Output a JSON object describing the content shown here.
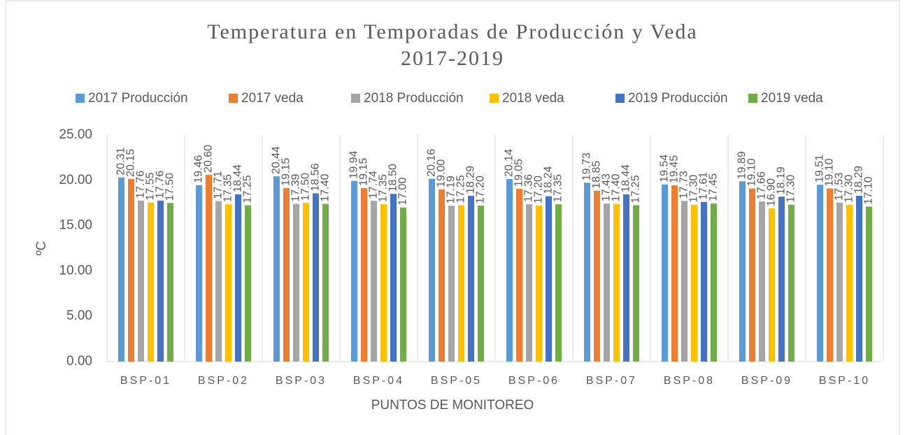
{
  "chart_data": {
    "type": "bar",
    "title": [
      "Temperatura en Temporadas de Producción y Veda",
      "2017-2019"
    ],
    "xlabel": "PUNTOS DE MONITOREO",
    "ylabel": "ºC",
    "categories": [
      "BSP-01",
      "BSP-02",
      "BSP-03",
      "BSP-04",
      "BSP-05",
      "BSP-06",
      "BSP-07",
      "BSP-08",
      "BSP-09",
      "BSP-10"
    ],
    "series": [
      {
        "name": "2017 Producción",
        "color": "#5b9bd5",
        "values": [
          20.31,
          19.46,
          20.44,
          19.94,
          20.16,
          20.14,
          19.73,
          19.54,
          19.89,
          19.51
        ],
        "value_labels": [
          "20.31",
          "19.46",
          "20.44",
          "19.94",
          "20.16",
          "20.14",
          "19.73",
          "19.54",
          "19.89",
          "19.51"
        ]
      },
      {
        "name": "2017 veda",
        "color": "#ed7d31",
        "values": [
          20.15,
          20.6,
          19.15,
          19.15,
          19,
          19.05,
          18.85,
          19.45,
          19.1,
          19.1
        ],
        "value_labels": [
          "20.15",
          "20.60",
          "19.15",
          "19.15",
          "19.00",
          "19.05",
          "18.85",
          "19.45",
          "19.10",
          "19.10"
        ]
      },
      {
        "name": "2018 Producción",
        "color": "#a5a5a5",
        "values": [
          17.76,
          17.71,
          17.39,
          17.74,
          17.19,
          17.36,
          17.43,
          17.73,
          17.66,
          17.53
        ],
        "value_labels": [
          "17.76",
          "17.71",
          "17.39",
          "17.74",
          "17.19",
          "17.36",
          "17.43",
          "17.73",
          "17.66",
          "17.53"
        ]
      },
      {
        "name": "2018 veda",
        "color": "#ffc000",
        "values": [
          17.55,
          17.35,
          17.5,
          17.35,
          17.25,
          17.2,
          17.4,
          17.3,
          16.9,
          17.3
        ],
        "value_labels": [
          "17.55",
          "17.35",
          "17.50",
          "17.35",
          "17.25",
          "17.20",
          "17.40",
          "17.30",
          "16.90",
          "17.30"
        ]
      },
      {
        "name": "2019 Producción",
        "color": "#4472c4",
        "values": [
          17.76,
          18.44,
          18.56,
          18.5,
          18.29,
          18.24,
          18.44,
          17.61,
          18.19,
          18.29
        ],
        "value_labels": [
          "17.76",
          "18.44",
          "18.56",
          "18.50",
          "18.29",
          "18.24",
          "18.44",
          "17.61",
          "18.19",
          "18.29"
        ]
      },
      {
        "name": "2019 veda",
        "color": "#70ad47",
        "values": [
          17.5,
          17.25,
          17.4,
          17,
          17.2,
          17.35,
          17.25,
          17.45,
          17.3,
          17.1
        ],
        "value_labels": [
          "17.50",
          "17.25",
          "17.40",
          "17.00",
          "17.20",
          "17.35",
          "17.25",
          "17.45",
          "17.30",
          "17.10"
        ]
      }
    ],
    "ylim": [
      0,
      25
    ],
    "yticks": [
      {
        "value": 0,
        "label": "0.00"
      },
      {
        "value": 5,
        "label": "5.00"
      },
      {
        "value": 10,
        "label": "10.00"
      },
      {
        "value": 15,
        "label": "15.00"
      },
      {
        "value": 20,
        "label": "20.00"
      },
      {
        "value": 25,
        "label": "25.00"
      }
    ],
    "legend": "top"
  }
}
